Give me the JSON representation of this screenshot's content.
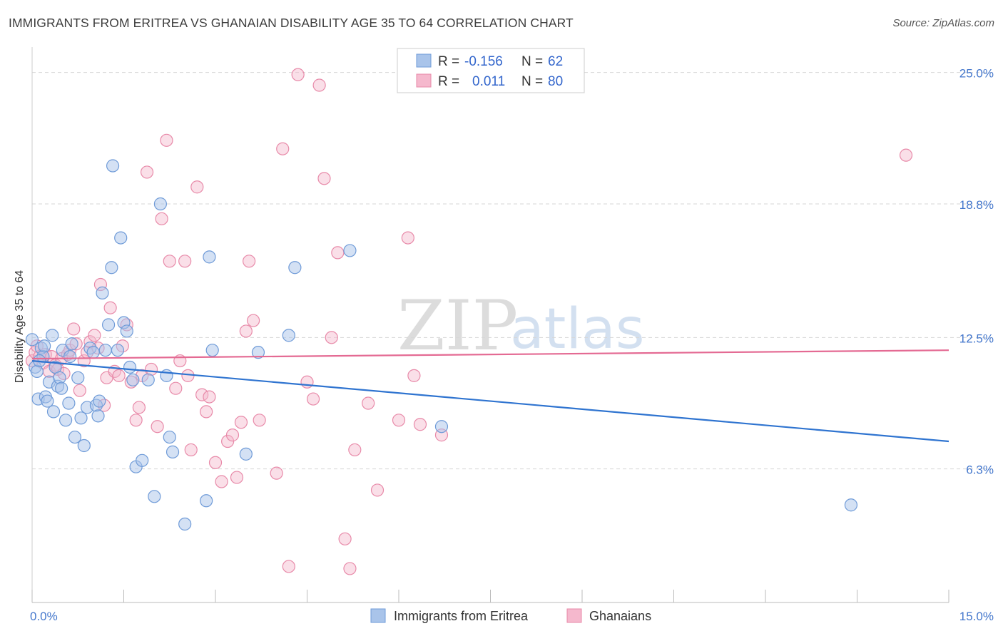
{
  "title": "IMMIGRANTS FROM ERITREA VS GHANAIAN DISABILITY AGE 35 TO 64 CORRELATION CHART",
  "source": "Source: ZipAtlas.com",
  "watermark": {
    "zip": "ZIP",
    "atlas": "atlas"
  },
  "legend": {
    "rows": [
      {
        "r_label": "R =",
        "r_value": "-0.156",
        "n_label": "N =",
        "n_value": "62"
      },
      {
        "r_label": "R =",
        "r_value": "0.011",
        "n_label": "N =",
        "n_value": "80"
      }
    ]
  },
  "bottom_legend": [
    "Immigrants from Eritrea",
    "Ghanaians"
  ],
  "colors": {
    "blue_fill": "#a9c4ea",
    "blue_stroke": "#6f9bd8",
    "blue_line": "#2f74d0",
    "pink_fill": "#f5b8cd",
    "pink_stroke": "#e88aa9",
    "pink_line": "#e46a93",
    "grid": "#d6d6d6",
    "tick_text": "#4477cc"
  },
  "chart_data": {
    "type": "scatter",
    "title": "IMMIGRANTS FROM ERITREA VS GHANAIAN DISABILITY AGE 35 TO 64 CORRELATION CHART",
    "xlabel": "",
    "ylabel": "Disability Age 35 to 64",
    "xlim": [
      0,
      15
    ],
    "ylim": [
      0,
      26.2
    ],
    "x_tick_labels": [
      "0.0%",
      "15.0%"
    ],
    "y_ticks": [
      6.3,
      12.5,
      18.8,
      25.0
    ],
    "y_tick_labels": [
      "6.3%",
      "12.5%",
      "18.8%",
      "25.0%"
    ],
    "grid": true,
    "legend_position": "top-center",
    "series": [
      {
        "name": "Immigrants from Eritrea",
        "r": -0.156,
        "n": 62,
        "trend": {
          "x": [
            0,
            15
          ],
          "y": [
            11.4,
            7.6
          ]
        },
        "points": [
          [
            0.0,
            12.4
          ],
          [
            0.05,
            11.1
          ],
          [
            0.1,
            9.6
          ],
          [
            0.15,
            12.0
          ],
          [
            0.18,
            11.6
          ],
          [
            0.22,
            9.7
          ],
          [
            0.25,
            9.5
          ],
          [
            0.28,
            10.4
          ],
          [
            0.33,
            12.6
          ],
          [
            0.38,
            11.1
          ],
          [
            0.42,
            10.2
          ],
          [
            0.45,
            10.6
          ],
          [
            0.5,
            11.9
          ],
          [
            0.55,
            8.6
          ],
          [
            0.6,
            9.4
          ],
          [
            0.62,
            11.6
          ],
          [
            0.7,
            7.8
          ],
          [
            0.75,
            10.6
          ],
          [
            0.8,
            8.7
          ],
          [
            0.85,
            7.4
          ],
          [
            0.9,
            9.2
          ],
          [
            0.95,
            12.0
          ],
          [
            1.0,
            11.8
          ],
          [
            1.05,
            9.3
          ],
          [
            1.1,
            9.5
          ],
          [
            1.15,
            14.6
          ],
          [
            1.2,
            11.9
          ],
          [
            1.25,
            13.1
          ],
          [
            1.3,
            15.8
          ],
          [
            1.32,
            20.6
          ],
          [
            1.4,
            11.9
          ],
          [
            1.45,
            17.2
          ],
          [
            1.5,
            13.2
          ],
          [
            1.55,
            12.8
          ],
          [
            1.6,
            11.1
          ],
          [
            1.65,
            10.5
          ],
          [
            1.7,
            6.4
          ],
          [
            1.8,
            6.7
          ],
          [
            1.9,
            10.5
          ],
          [
            2.0,
            5.0
          ],
          [
            2.1,
            18.8
          ],
          [
            2.2,
            10.7
          ],
          [
            2.25,
            7.8
          ],
          [
            2.3,
            7.1
          ],
          [
            2.5,
            3.7
          ],
          [
            2.85,
            4.8
          ],
          [
            2.9,
            16.3
          ],
          [
            2.95,
            11.9
          ],
          [
            3.5,
            7.0
          ],
          [
            3.7,
            11.8
          ],
          [
            4.2,
            12.6
          ],
          [
            4.3,
            15.8
          ],
          [
            5.2,
            16.6
          ],
          [
            6.7,
            8.3
          ],
          [
            13.4,
            4.6
          ],
          [
            0.08,
            10.9
          ],
          [
            0.12,
            11.4
          ],
          [
            0.35,
            9.0
          ],
          [
            0.65,
            12.2
          ],
          [
            1.08,
            8.8
          ],
          [
            0.48,
            10.1
          ],
          [
            0.2,
            12.1
          ]
        ]
      },
      {
        "name": "Ghanaians",
        "r": 0.011,
        "n": 80,
        "trend": {
          "x": [
            0,
            15
          ],
          "y": [
            11.5,
            11.9
          ]
        },
        "points": [
          [
            0.0,
            11.4
          ],
          [
            0.05,
            11.8
          ],
          [
            0.08,
            12.1
          ],
          [
            0.12,
            11.6
          ],
          [
            0.18,
            11.3
          ],
          [
            0.22,
            11.7
          ],
          [
            0.28,
            10.9
          ],
          [
            0.32,
            11.6
          ],
          [
            0.38,
            11.2
          ],
          [
            0.42,
            11.0
          ],
          [
            0.48,
            11.5
          ],
          [
            0.52,
            10.8
          ],
          [
            0.58,
            11.7
          ],
          [
            0.62,
            11.9
          ],
          [
            0.68,
            12.9
          ],
          [
            0.72,
            12.2
          ],
          [
            0.78,
            10.0
          ],
          [
            0.85,
            11.4
          ],
          [
            0.9,
            11.8
          ],
          [
            0.95,
            12.3
          ],
          [
            1.02,
            12.6
          ],
          [
            1.08,
            12.0
          ],
          [
            1.12,
            15.0
          ],
          [
            1.18,
            9.3
          ],
          [
            1.22,
            10.6
          ],
          [
            1.28,
            13.9
          ],
          [
            1.35,
            10.9
          ],
          [
            1.42,
            10.7
          ],
          [
            1.48,
            12.1
          ],
          [
            1.55,
            13.1
          ],
          [
            1.62,
            10.4
          ],
          [
            1.7,
            8.6
          ],
          [
            1.75,
            9.2
          ],
          [
            1.8,
            10.7
          ],
          [
            1.88,
            20.3
          ],
          [
            1.95,
            11.0
          ],
          [
            2.05,
            8.3
          ],
          [
            2.12,
            18.1
          ],
          [
            2.2,
            21.8
          ],
          [
            2.25,
            16.1
          ],
          [
            2.35,
            10.1
          ],
          [
            2.42,
            11.4
          ],
          [
            2.5,
            16.1
          ],
          [
            2.55,
            10.7
          ],
          [
            2.6,
            7.2
          ],
          [
            2.7,
            19.6
          ],
          [
            2.78,
            9.8
          ],
          [
            2.85,
            9.0
          ],
          [
            2.9,
            9.7
          ],
          [
            3.0,
            6.6
          ],
          [
            3.1,
            5.7
          ],
          [
            3.2,
            7.6
          ],
          [
            3.28,
            7.9
          ],
          [
            3.35,
            5.9
          ],
          [
            3.42,
            8.5
          ],
          [
            3.5,
            12.8
          ],
          [
            3.55,
            16.1
          ],
          [
            3.62,
            13.3
          ],
          [
            3.72,
            8.6
          ],
          [
            4.0,
            6.1
          ],
          [
            4.1,
            21.4
          ],
          [
            4.2,
            1.7
          ],
          [
            4.35,
            24.9
          ],
          [
            4.5,
            10.4
          ],
          [
            4.6,
            9.6
          ],
          [
            4.7,
            24.4
          ],
          [
            4.78,
            20.0
          ],
          [
            4.9,
            12.5
          ],
          [
            5.0,
            16.5
          ],
          [
            5.12,
            3.0
          ],
          [
            5.2,
            1.6
          ],
          [
            5.28,
            7.2
          ],
          [
            5.5,
            9.4
          ],
          [
            5.65,
            5.3
          ],
          [
            6.0,
            8.6
          ],
          [
            6.15,
            17.2
          ],
          [
            6.25,
            10.7
          ],
          [
            6.35,
            8.4
          ],
          [
            6.7,
            7.9
          ],
          [
            14.3,
            21.1
          ]
        ]
      }
    ]
  }
}
